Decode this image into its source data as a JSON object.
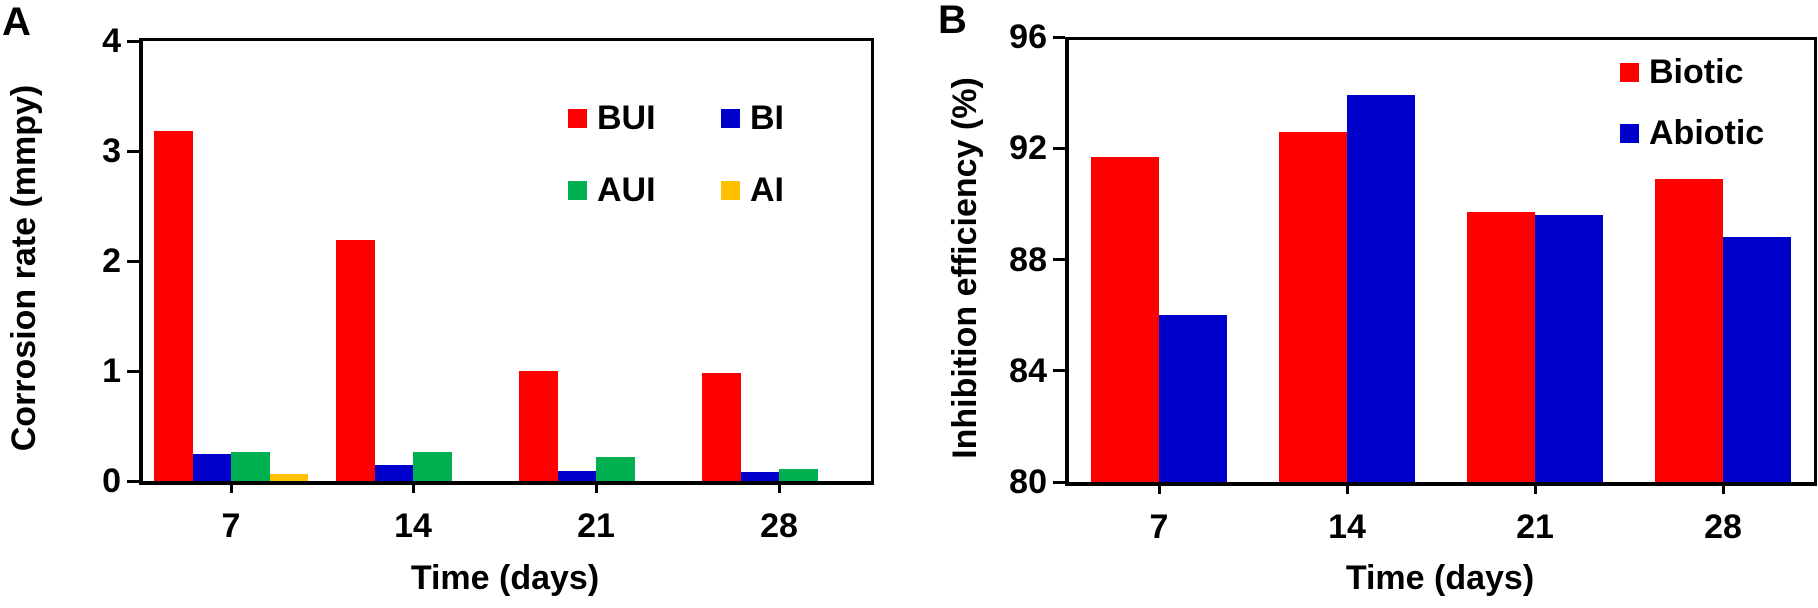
{
  "chart_data": [
    {
      "panel": "A",
      "type": "bar",
      "title": "",
      "xlabel": "Time (days)",
      "ylabel": "Corrosion rate (mmpy)",
      "categories": [
        "7",
        "14",
        "21",
        "28"
      ],
      "ylim": [
        0,
        4
      ],
      "yticks": [
        "0",
        "1",
        "2",
        "3",
        "4"
      ],
      "grid": false,
      "legend_position": "upper right (2x2)",
      "series": [
        {
          "name": "BUI",
          "color": "#ff0000",
          "values": [
            3.18,
            2.19,
            1.0,
            0.98
          ]
        },
        {
          "name": "BI",
          "color": "#0000cc",
          "values": [
            0.25,
            0.15,
            0.09,
            0.08
          ]
        },
        {
          "name": "AUI",
          "color": "#00b050",
          "values": [
            0.26,
            0.26,
            0.22,
            0.11
          ]
        },
        {
          "name": "AI",
          "color": "#ffc000",
          "values": [
            0.06,
            0.0,
            0.0,
            0.0
          ]
        }
      ]
    },
    {
      "panel": "B",
      "type": "bar",
      "title": "",
      "xlabel": "Time (days)",
      "ylabel": "Inhibition efficiency (%)",
      "categories": [
        "7",
        "14",
        "21",
        "28"
      ],
      "ylim": [
        80,
        96
      ],
      "yticks": [
        "80",
        "84",
        "88",
        "92",
        "96"
      ],
      "grid": false,
      "legend_position": "upper right",
      "series": [
        {
          "name": "Biotic",
          "color": "#ff0000",
          "values": [
            91.7,
            92.6,
            89.7,
            90.9
          ]
        },
        {
          "name": "Abiotic",
          "color": "#0000cc",
          "values": [
            86.0,
            93.9,
            89.6,
            88.8
          ]
        }
      ]
    }
  ],
  "panels": {
    "a": {
      "letter": "A"
    },
    "b": {
      "letter": "B"
    }
  }
}
